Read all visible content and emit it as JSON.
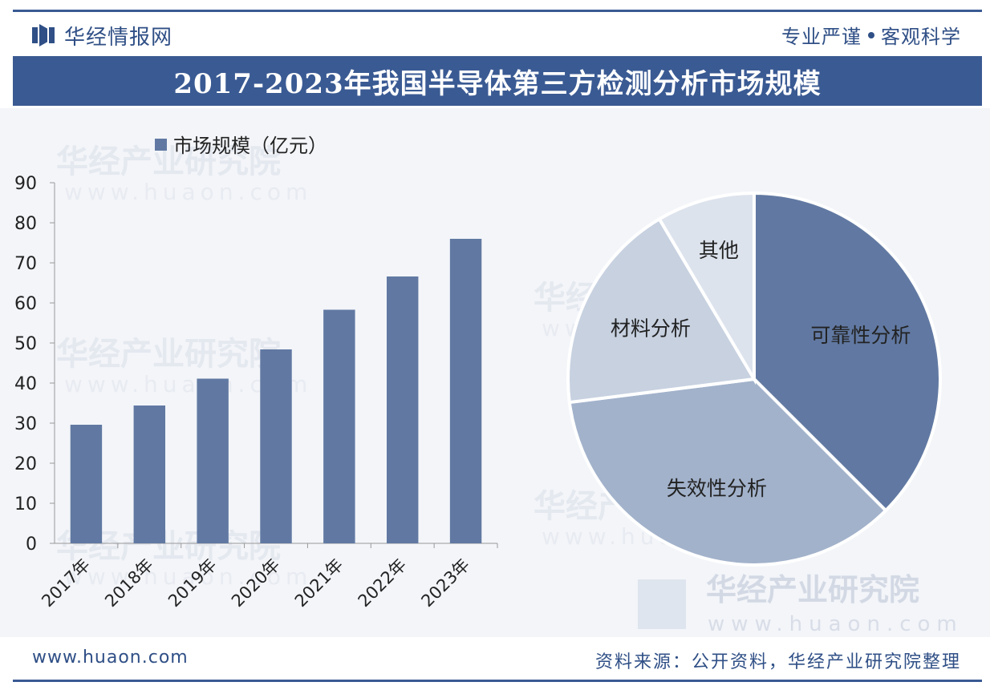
{
  "header": {
    "brand_name": "华经情报网",
    "slogan_left": "专业严谨",
    "slogan_right": "客观科学"
  },
  "title": "2017-2023年我国半导体第三方检测分析市场规模",
  "colors": {
    "accent": "#3a5a93",
    "bar": "#6179a2",
    "pie": [
      "#6179a2",
      "#a2b2cb",
      "#c7d1e0",
      "#dde3ed"
    ]
  },
  "chart_data": [
    {
      "type": "bar",
      "legend": "市场规模（亿元）",
      "categories": [
        "2017年",
        "2018年",
        "2019年",
        "2020年",
        "2021年",
        "2022年",
        "2023年"
      ],
      "values": [
        29.6,
        34.4,
        41.1,
        48.4,
        58.3,
        66.6,
        76.0
      ],
      "ylim": [
        0,
        90
      ],
      "yticks": [
        0,
        10,
        20,
        30,
        40,
        50,
        60,
        70,
        80,
        90
      ]
    },
    {
      "type": "pie",
      "labels": [
        "可靠性分析",
        "失效性分析",
        "材料分析",
        "其他"
      ],
      "values": [
        37.5,
        35.5,
        18.5,
        8.5
      ]
    }
  ],
  "footer": {
    "website": "www.huaon.com",
    "source": "资料来源：公开资料，华经产业研究院整理"
  },
  "watermark": {
    "text": "华经产业研究院",
    "url": "www.huaon.com"
  }
}
